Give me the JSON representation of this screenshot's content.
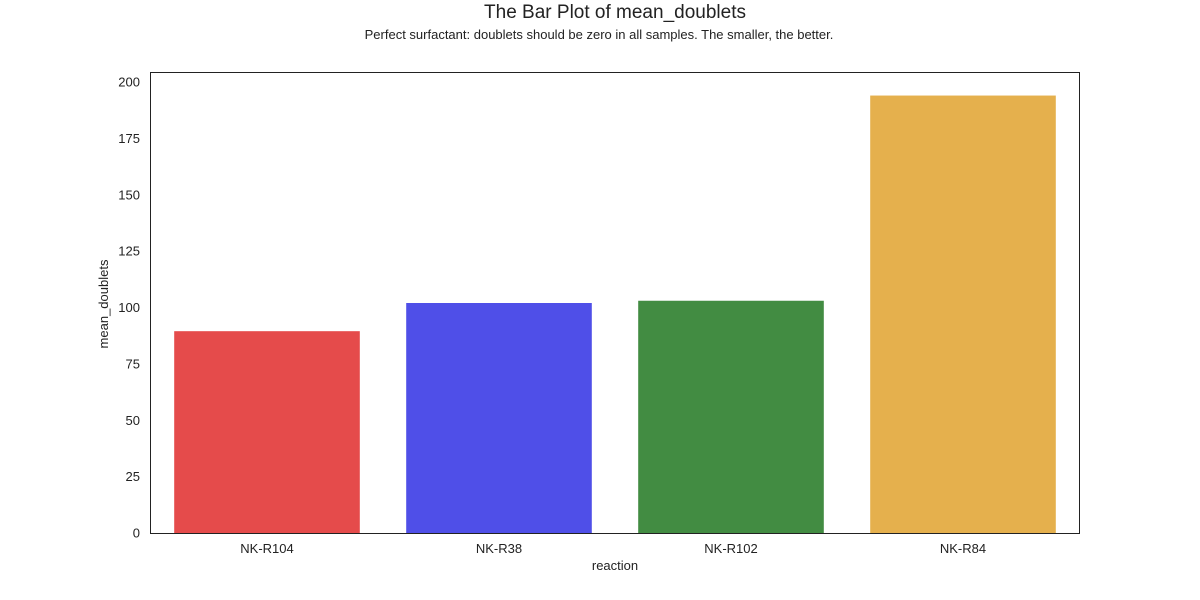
{
  "chart_data": {
    "type": "bar",
    "title": "The Bar Plot of mean_doublets",
    "subtitle": "Perfect surfactant: doublets should be zero in all samples. The smaller, the better.",
    "xlabel": "reaction",
    "ylabel": "mean_doublets",
    "categories": [
      "NK-R104",
      "NK-R38",
      "NK-R102",
      "NK-R84"
    ],
    "values": [
      89.5,
      102,
      103,
      194
    ],
    "colors": [
      "#e54b4b",
      "#4f4fe8",
      "#428c42",
      "#e5b04d"
    ],
    "ylim": [
      0,
      204
    ],
    "yticks": [
      0,
      25,
      50,
      75,
      100,
      125,
      150,
      175,
      200
    ],
    "ytick_labels": [
      "0",
      "25",
      "50",
      "75",
      "100",
      "125",
      "150",
      "175",
      "200"
    ],
    "grid": false,
    "legend": false
  }
}
